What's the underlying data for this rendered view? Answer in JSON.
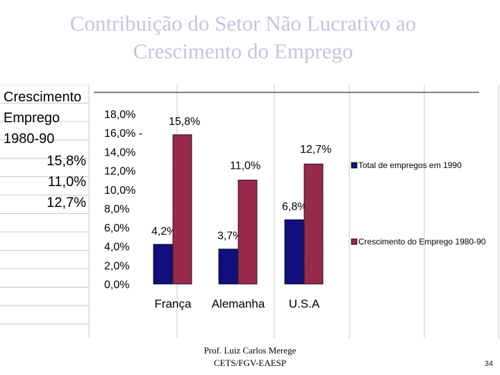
{
  "title": {
    "line1": "Contribuição do Setor Não Lucrativo ao",
    "line2": "Crescimento do Emprego"
  },
  "sheet_cells": [
    "Crescimento",
    "Emprego",
    "1980-90",
    "15,8%",
    "11,0%",
    "12,7%"
  ],
  "colors": {
    "title": "#c4c4e2",
    "series_total": "#0a0a78",
    "series_crescimento": "#8a1538",
    "grid": "#c8c8c8"
  },
  "chart_data": {
    "type": "bar",
    "categories": [
      "França",
      "Alemanha",
      "U.S.A"
    ],
    "series": [
      {
        "name": "Total de empregos em 1990",
        "values": [
          4.2,
          3.7,
          6.8
        ],
        "labels": [
          "4,2%",
          "3,7%",
          "6,8%"
        ]
      },
      {
        "name": "Crescimento do Emprego 1980-90",
        "values": [
          15.8,
          11.0,
          12.7
        ],
        "labels": [
          "15,8%",
          "11,0%",
          "12,7%"
        ]
      }
    ],
    "y_ticks": [
      "18,0%",
      "16,0% -",
      "14,0%",
      "12,0%",
      "10,0%",
      "8,0%",
      "6,0%",
      "4,0%",
      "2,0%",
      "0,0%"
    ],
    "ylim": [
      0,
      18
    ],
    "legend_position": "right"
  },
  "footer": {
    "line1": "Prof. Luiz Carlos Merege",
    "line2": "CETS/FGV-EAESP"
  },
  "page_number": "34"
}
